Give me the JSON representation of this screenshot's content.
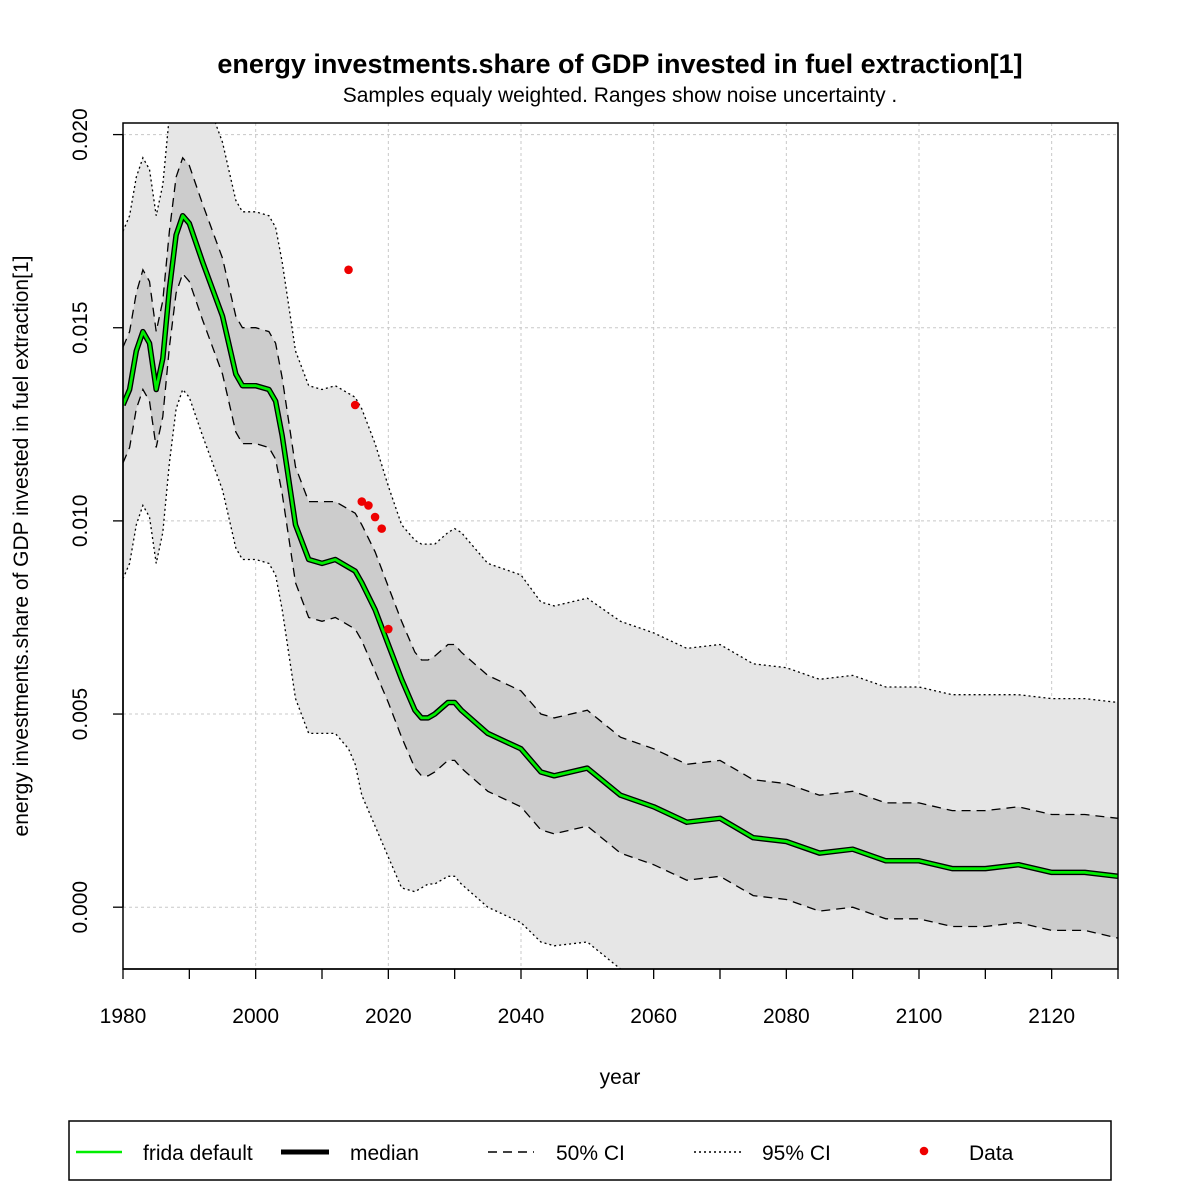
{
  "chart_data": {
    "type": "line",
    "title": "energy investments.share of GDP invested in fuel extraction[1]",
    "subtitle": "Samples equaly weighted. Ranges show  noise uncertainty .",
    "xlabel": "year",
    "ylabel": "energy investments.share of GDP invested in fuel extraction[1]",
    "xlim": [
      1980,
      2130
    ],
    "ylim": [
      -0.0016,
      0.0203
    ],
    "x_ticks": [
      1980,
      2000,
      2020,
      2040,
      2060,
      2080,
      2100,
      2120
    ],
    "x_tick_labels": [
      "1980",
      "2000",
      "2020",
      "2040",
      "2060",
      "2080",
      "2100",
      "2120"
    ],
    "y_ticks": [
      0.0,
      0.005,
      0.01,
      0.015,
      0.02
    ],
    "y_tick_labels": [
      "0.000",
      "0.005",
      "0.010",
      "0.015",
      "0.020"
    ],
    "grid": true,
    "legend_position": "bottom",
    "legend": [
      {
        "label": "frida default",
        "style": "solid",
        "color": "#00ee00"
      },
      {
        "label": "median",
        "style": "solid-thick",
        "color": "#000000"
      },
      {
        "label": "50% CI",
        "style": "dashed",
        "color": "#000000"
      },
      {
        "label": "95% CI",
        "style": "dotted",
        "color": "#000000"
      },
      {
        "label": "Data",
        "style": "point",
        "color": "#ee0000"
      }
    ],
    "colors": {
      "frida_default": "#00ee00",
      "median": "#000000",
      "band_95": "#e6e6e6",
      "band_50": "#cccccc",
      "data": "#ee0000",
      "grid": "#c8c8c8"
    },
    "x": [
      1980,
      1981,
      1982,
      1983,
      1984,
      1985,
      1986,
      1987,
      1988,
      1989,
      1990,
      1992,
      1995,
      1997,
      1998,
      2000,
      2002,
      2003,
      2004,
      2006,
      2008,
      2010,
      2012,
      2014,
      2015,
      2016,
      2018,
      2020,
      2022,
      2024,
      2025,
      2026,
      2027,
      2029,
      2030,
      2031,
      2035,
      2040,
      2043,
      2045,
      2050,
      2055,
      2060,
      2065,
      2070,
      2075,
      2080,
      2085,
      2090,
      2095,
      2100,
      2105,
      2110,
      2115,
      2120,
      2125,
      2130
    ],
    "series": [
      {
        "name": "frida default",
        "values": [
          0.013,
          0.0134,
          0.0144,
          0.0149,
          0.0146,
          0.0134,
          0.0142,
          0.016,
          0.0174,
          0.0179,
          0.0177,
          0.0167,
          0.0153,
          0.0138,
          0.0135,
          0.0135,
          0.0134,
          0.0131,
          0.0122,
          0.0099,
          0.009,
          0.0089,
          0.009,
          0.0088,
          0.0087,
          0.0084,
          0.0077,
          0.0068,
          0.0059,
          0.0051,
          0.0049,
          0.0049,
          0.005,
          0.0053,
          0.0053,
          0.0051,
          0.0045,
          0.0041,
          0.0035,
          0.0034,
          0.0036,
          0.0029,
          0.0026,
          0.0022,
          0.0023,
          0.0018,
          0.0017,
          0.0014,
          0.0015,
          0.0012,
          0.0012,
          0.001,
          0.001,
          0.0011,
          0.0009,
          0.0009,
          0.0008
        ]
      },
      {
        "name": "median",
        "values": [
          0.013,
          0.0134,
          0.0144,
          0.0149,
          0.0146,
          0.0134,
          0.0142,
          0.016,
          0.0174,
          0.0179,
          0.0177,
          0.0167,
          0.0153,
          0.0138,
          0.0135,
          0.0135,
          0.0134,
          0.0131,
          0.0122,
          0.0099,
          0.009,
          0.0089,
          0.009,
          0.0088,
          0.0087,
          0.0084,
          0.0077,
          0.0068,
          0.0059,
          0.0051,
          0.0049,
          0.0049,
          0.005,
          0.0053,
          0.0053,
          0.0051,
          0.0045,
          0.0041,
          0.0035,
          0.0034,
          0.0036,
          0.0029,
          0.0026,
          0.0022,
          0.0023,
          0.0018,
          0.0017,
          0.0014,
          0.0015,
          0.0012,
          0.0012,
          0.001,
          0.001,
          0.0011,
          0.0009,
          0.0009,
          0.0008
        ]
      },
      {
        "name": "50% CI upper",
        "values": [
          0.0145,
          0.0149,
          0.0159,
          0.0165,
          0.0162,
          0.0149,
          0.0157,
          0.0175,
          0.0189,
          0.0194,
          0.0192,
          0.0182,
          0.0168,
          0.0153,
          0.015,
          0.015,
          0.0149,
          0.0146,
          0.0137,
          0.0114,
          0.0105,
          0.0105,
          0.0105,
          0.0103,
          0.0102,
          0.0099,
          0.0092,
          0.0083,
          0.0074,
          0.0066,
          0.0064,
          0.0064,
          0.0065,
          0.0068,
          0.0068,
          0.0066,
          0.006,
          0.0056,
          0.005,
          0.0049,
          0.0051,
          0.0044,
          0.0041,
          0.0037,
          0.0038,
          0.0033,
          0.0032,
          0.0029,
          0.003,
          0.0027,
          0.0027,
          0.0025,
          0.0025,
          0.0026,
          0.0024,
          0.0024,
          0.0023
        ]
      },
      {
        "name": "50% CI lower",
        "values": [
          0.0115,
          0.0119,
          0.0129,
          0.0134,
          0.0131,
          0.0119,
          0.0127,
          0.0145,
          0.0159,
          0.0164,
          0.0162,
          0.0152,
          0.0138,
          0.0123,
          0.012,
          0.012,
          0.0119,
          0.0116,
          0.0107,
          0.0084,
          0.0075,
          0.0074,
          0.0075,
          0.0073,
          0.0072,
          0.0069,
          0.0061,
          0.0053,
          0.0044,
          0.0036,
          0.0034,
          0.0034,
          0.0035,
          0.0038,
          0.0038,
          0.0036,
          0.003,
          0.0026,
          0.002,
          0.0019,
          0.0021,
          0.0014,
          0.0011,
          0.0007,
          0.0008,
          0.0003,
          0.0002,
          -0.0001,
          0.0,
          -0.0003,
          -0.0003,
          -0.0005,
          -0.0005,
          -0.0004,
          -0.0006,
          -0.0006,
          -0.0008
        ]
      },
      {
        "name": "95% CI upper",
        "values": [
          0.0175,
          0.0179,
          0.0189,
          0.0194,
          0.0191,
          0.0179,
          0.0187,
          0.0205,
          0.0219,
          0.0224,
          0.0222,
          0.0212,
          0.0198,
          0.0183,
          0.018,
          0.018,
          0.0179,
          0.0176,
          0.0167,
          0.0144,
          0.0135,
          0.0134,
          0.0135,
          0.0133,
          0.0132,
          0.0129,
          0.012,
          0.0109,
          0.0099,
          0.0095,
          0.0094,
          0.0094,
          0.0094,
          0.0097,
          0.0098,
          0.0097,
          0.0089,
          0.0086,
          0.0079,
          0.0078,
          0.008,
          0.0074,
          0.0071,
          0.0067,
          0.0068,
          0.0063,
          0.0062,
          0.0059,
          0.006,
          0.0057,
          0.0057,
          0.0055,
          0.0055,
          0.0055,
          0.0054,
          0.0054,
          0.0053
        ]
      },
      {
        "name": "95% CI lower",
        "values": [
          0.0085,
          0.0089,
          0.0099,
          0.0104,
          0.0101,
          0.0089,
          0.0097,
          0.0115,
          0.0129,
          0.0134,
          0.0132,
          0.0122,
          0.0108,
          0.0093,
          0.009,
          0.009,
          0.0089,
          0.0086,
          0.0077,
          0.0054,
          0.0045,
          0.0045,
          0.0045,
          0.0041,
          0.0037,
          0.0029,
          0.0021,
          0.0013,
          0.0005,
          0.0004,
          0.0005,
          0.0006,
          0.0006,
          0.0008,
          0.0008,
          0.0006,
          0.0,
          -0.0004,
          -0.0009,
          -0.001,
          -0.0009,
          -0.0016,
          -0.0019,
          -0.0023,
          -0.0022,
          -0.0027,
          -0.0028,
          -0.0031,
          -0.003,
          -0.0033,
          -0.0033,
          -0.0035,
          -0.0035,
          -0.0034,
          -0.0036,
          -0.0036,
          -0.0038
        ]
      }
    ],
    "data_points": {
      "name": "Data",
      "x": [
        2014,
        2015,
        2016,
        2017,
        2018,
        2019,
        2020
      ],
      "y": [
        0.0165,
        0.013,
        0.0105,
        0.0104,
        0.0101,
        0.0098,
        0.0072
      ]
    }
  }
}
